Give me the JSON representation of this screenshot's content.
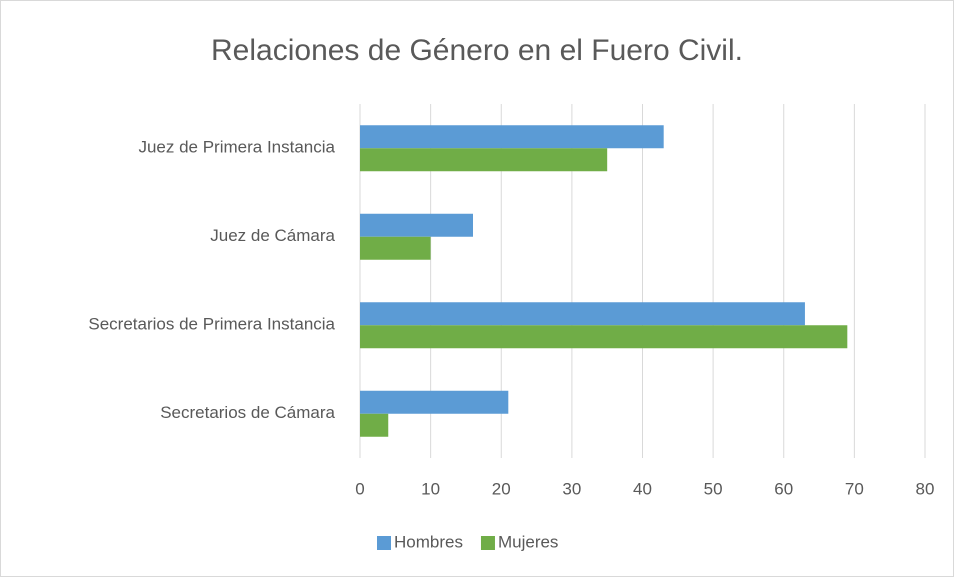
{
  "chart_data": {
    "type": "bar",
    "orientation": "horizontal",
    "title": "Relaciones de Género en el Fuero Civil.",
    "categories": [
      "Juez de Primera Instancia",
      "Juez de Cámara",
      "Secretarios de Primera Instancia",
      "Secretarios de Cámara"
    ],
    "series": [
      {
        "name": "Hombres",
        "color": "#5b9bd5",
        "values": [
          43,
          16,
          63,
          21
        ]
      },
      {
        "name": "Mujeres",
        "color": "#70ad47",
        "values": [
          35,
          10,
          69,
          4
        ]
      }
    ],
    "xlim": [
      0,
      80
    ],
    "xticks": [
      0,
      10,
      20,
      30,
      40,
      50,
      60,
      70,
      80
    ],
    "grid": true,
    "legend": "bottom"
  }
}
